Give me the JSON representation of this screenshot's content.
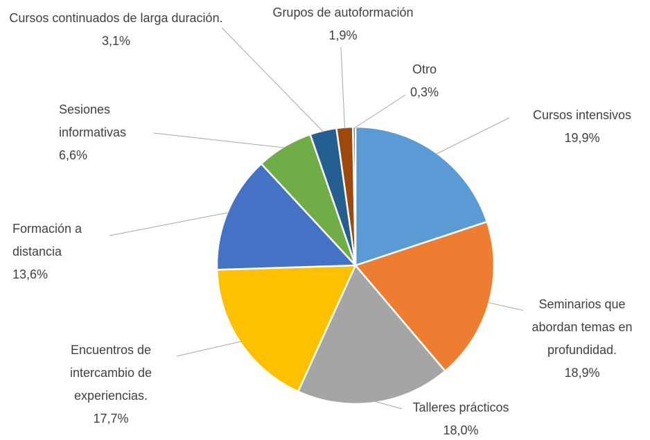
{
  "chart_data": {
    "type": "pie",
    "categories": [
      "Cursos intensivos",
      "Seminarios que abordan temas en profundidad.",
      "Talleres prácticos",
      "Encuentros de intercambio de experiencias.",
      "Formación a distancia",
      "Sesiones informativas",
      "Cursos continuados de larga duración.",
      "Grupos de autoformación",
      "Otro"
    ],
    "values": [
      19.9,
      18.9,
      18.0,
      17.7,
      13.6,
      6.6,
      3.1,
      1.9,
      0.3
    ],
    "value_labels": [
      "19,9%",
      "18,9%",
      "18,0%",
      "17,7%",
      "13,6%",
      "6,6%",
      "3,1%",
      "1,9%",
      "0,3%"
    ],
    "colors": [
      "#5b9bd5",
      "#ed7d31",
      "#a5a5a5",
      "#ffc000",
      "#4472c4",
      "#70ad47",
      "#255e91",
      "#9e480e",
      "#636363"
    ]
  }
}
